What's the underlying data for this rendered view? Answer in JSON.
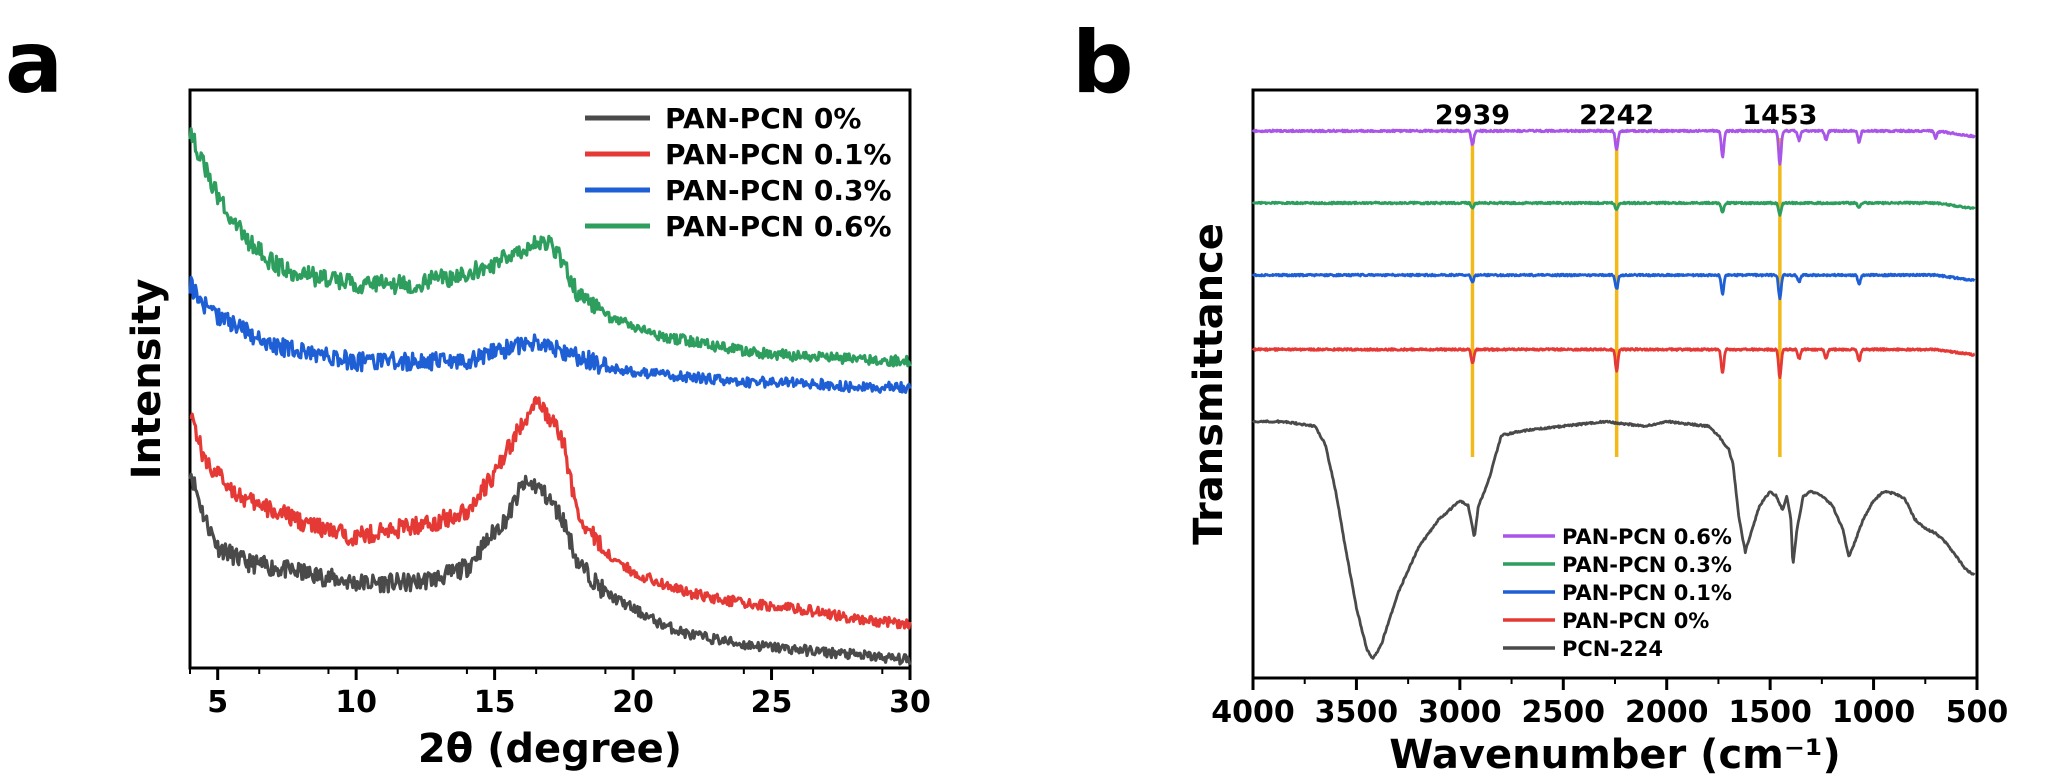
{
  "chart_data": [
    {
      "panel": "a",
      "type": "line",
      "xlabel": "2θ (degree)",
      "ylabel": "Intensity",
      "xlim": [
        4,
        30
      ],
      "xticks": [
        5,
        10,
        15,
        20,
        25,
        30
      ],
      "yticks": [],
      "legend_position": "top-right",
      "grid": false,
      "series": [
        {
          "name": "PAN-PCN 0%",
          "color": "#4a4a4a",
          "points": [
            [
              4,
              0.34
            ],
            [
              4.5,
              0.25
            ],
            [
              5,
              0.19
            ],
            [
              6,
              0.16
            ],
            [
              7,
              0.15
            ],
            [
              8,
              0.14
            ],
            [
              9,
              0.13
            ],
            [
              10,
              0.12
            ],
            [
              11,
              0.12
            ],
            [
              12,
              0.12
            ],
            [
              13,
              0.13
            ],
            [
              14,
              0.15
            ],
            [
              15,
              0.22
            ],
            [
              15.5,
              0.25
            ],
            [
              16,
              0.31
            ],
            [
              16.5,
              0.31
            ],
            [
              17,
              0.28
            ],
            [
              17.5,
              0.24
            ],
            [
              18,
              0.16
            ],
            [
              19,
              0.1
            ],
            [
              20,
              0.07
            ],
            [
              21,
              0.04
            ],
            [
              22,
              0.02
            ],
            [
              23,
              0.01
            ],
            [
              24,
              0.0
            ],
            [
              26,
              -0.01
            ],
            [
              28,
              -0.02
            ],
            [
              30,
              -0.03
            ]
          ]
        },
        {
          "name": "PAN-PCN 0.1%",
          "color": "#e53935",
          "points": [
            [
              4,
              0.46
            ],
            [
              4.5,
              0.36
            ],
            [
              5,
              0.33
            ],
            [
              6,
              0.28
            ],
            [
              7,
              0.26
            ],
            [
              8,
              0.24
            ],
            [
              9,
              0.22
            ],
            [
              10,
              0.21
            ],
            [
              11,
              0.22
            ],
            [
              12,
              0.23
            ],
            [
              13,
              0.24
            ],
            [
              14,
              0.26
            ],
            [
              15,
              0.33
            ],
            [
              16,
              0.43
            ],
            [
              16.5,
              0.47
            ],
            [
              17,
              0.44
            ],
            [
              17.5,
              0.39
            ],
            [
              18,
              0.25
            ],
            [
              19,
              0.18
            ],
            [
              20,
              0.14
            ],
            [
              21,
              0.12
            ],
            [
              22,
              0.1
            ],
            [
              23,
              0.09
            ],
            [
              24,
              0.08
            ],
            [
              26,
              0.07
            ],
            [
              28,
              0.05
            ],
            [
              30,
              0.04
            ]
          ]
        },
        {
          "name": "PAN-PCN 0.3%",
          "color": "#1e5fd6",
          "points": [
            [
              4,
              0.7
            ],
            [
              4.5,
              0.66
            ],
            [
              5,
              0.64
            ],
            [
              6,
              0.61
            ],
            [
              7,
              0.58
            ],
            [
              8,
              0.57
            ],
            [
              9,
              0.56
            ],
            [
              10,
              0.55
            ],
            [
              11,
              0.55
            ],
            [
              12,
              0.55
            ],
            [
              13,
              0.55
            ],
            [
              14,
              0.55
            ],
            [
              15,
              0.57
            ],
            [
              16,
              0.58
            ],
            [
              16.5,
              0.59
            ],
            [
              17,
              0.58
            ],
            [
              18,
              0.56
            ],
            [
              19,
              0.54
            ],
            [
              20,
              0.53
            ],
            [
              22,
              0.52
            ],
            [
              24,
              0.51
            ],
            [
              26,
              0.51
            ],
            [
              28,
              0.5
            ],
            [
              30,
              0.5
            ]
          ]
        },
        {
          "name": "PAN-PCN 0.6%",
          "color": "#2e9e5e",
          "points": [
            [
              4,
              1.0
            ],
            [
              4.5,
              0.93
            ],
            [
              5,
              0.87
            ],
            [
              6,
              0.79
            ],
            [
              7,
              0.74
            ],
            [
              8,
              0.72
            ],
            [
              9,
              0.71
            ],
            [
              10,
              0.7
            ],
            [
              11,
              0.7
            ],
            [
              12,
              0.7
            ],
            [
              13,
              0.71
            ],
            [
              14,
              0.72
            ],
            [
              15,
              0.74
            ],
            [
              16,
              0.77
            ],
            [
              16.5,
              0.78
            ],
            [
              17,
              0.78
            ],
            [
              17.5,
              0.74
            ],
            [
              18,
              0.68
            ],
            [
              19,
              0.64
            ],
            [
              20,
              0.62
            ],
            [
              21,
              0.6
            ],
            [
              22,
              0.59
            ],
            [
              23,
              0.58
            ],
            [
              24,
              0.57
            ],
            [
              26,
              0.56
            ],
            [
              28,
              0.555
            ],
            [
              30,
              0.55
            ]
          ]
        }
      ]
    },
    {
      "panel": "b",
      "type": "line",
      "xlabel": "Wavenumber (cm⁻¹)",
      "ylabel": "Transmittance",
      "xlim": [
        4000,
        500
      ],
      "xticks": [
        4000,
        3500,
        3000,
        2500,
        2000,
        1500,
        1000,
        500
      ],
      "yticks": [],
      "legend_position": "bottom-center",
      "grid": false,
      "annotations": [
        {
          "label": "2939",
          "x": 2939
        },
        {
          "label": "2242",
          "x": 2242
        },
        {
          "label": "1453",
          "x": 1453
        }
      ],
      "series": [
        {
          "name": "PAN-PCN 0.6%",
          "color": "#a855e8",
          "baseline": 0.955,
          "features": [
            [
              2939,
              0.03
            ],
            [
              2242,
              0.04
            ],
            [
              1730,
              0.055
            ],
            [
              1453,
              0.07
            ],
            [
              1360,
              0.02
            ],
            [
              1230,
              0.02
            ],
            [
              1070,
              0.025
            ],
            [
              700,
              0.015
            ]
          ]
        },
        {
          "name": "PAN-PCN 0.3%",
          "color": "#2e9e5e",
          "baseline": 0.8,
          "features": [
            [
              2939,
              0.01
            ],
            [
              2242,
              0.015
            ],
            [
              1730,
              0.02
            ],
            [
              1453,
              0.025
            ],
            [
              1070,
              0.01
            ]
          ]
        },
        {
          "name": "PAN-PCN 0.1%",
          "color": "#1e5fd6",
          "baseline": 0.645,
          "features": [
            [
              2939,
              0.015
            ],
            [
              2242,
              0.03
            ],
            [
              1730,
              0.04
            ],
            [
              1453,
              0.05
            ],
            [
              1360,
              0.015
            ],
            [
              1070,
              0.02
            ]
          ]
        },
        {
          "name": "PAN-PCN 0%",
          "color": "#e53935",
          "baseline": 0.485,
          "features": [
            [
              2939,
              0.03
            ],
            [
              2242,
              0.045
            ],
            [
              1730,
              0.05
            ],
            [
              1453,
              0.06
            ],
            [
              1360,
              0.02
            ],
            [
              1230,
              0.02
            ],
            [
              1070,
              0.025
            ]
          ]
        },
        {
          "name": "PCN-224",
          "color": "#4a4a4a",
          "points": [
            [
              4000,
              0.33
            ],
            [
              3850,
              0.33
            ],
            [
              3700,
              0.32
            ],
            [
              3650,
              0.28
            ],
            [
              3600,
              0.18
            ],
            [
              3550,
              0.05
            ],
            [
              3500,
              -0.07
            ],
            [
              3450,
              -0.16
            ],
            [
              3420,
              -0.18
            ],
            [
              3380,
              -0.15
            ],
            [
              3300,
              -0.04
            ],
            [
              3200,
              0.06
            ],
            [
              3100,
              0.12
            ],
            [
              3000,
              0.16
            ],
            [
              2960,
              0.15
            ],
            [
              2930,
              0.08
            ],
            [
              2910,
              0.15
            ],
            [
              2880,
              0.18
            ],
            [
              2850,
              0.22
            ],
            [
              2800,
              0.3
            ],
            [
              2700,
              0.31
            ],
            [
              2500,
              0.32
            ],
            [
              2300,
              0.33
            ],
            [
              2100,
              0.32
            ],
            [
              2000,
              0.33
            ],
            [
              1800,
              0.32
            ],
            [
              1750,
              0.3
            ],
            [
              1700,
              0.27
            ],
            [
              1680,
              0.24
            ],
            [
              1650,
              0.12
            ],
            [
              1620,
              0.05
            ],
            [
              1600,
              0.08
            ],
            [
              1550,
              0.15
            ],
            [
              1500,
              0.18
            ],
            [
              1470,
              0.17
            ],
            [
              1440,
              0.14
            ],
            [
              1420,
              0.17
            ],
            [
              1400,
              0.12
            ],
            [
              1390,
              0.02
            ],
            [
              1370,
              0.1
            ],
            [
              1340,
              0.17
            ],
            [
              1300,
              0.18
            ],
            [
              1250,
              0.17
            ],
            [
              1200,
              0.15
            ],
            [
              1150,
              0.1
            ],
            [
              1120,
              0.04
            ],
            [
              1100,
              0.06
            ],
            [
              1050,
              0.12
            ],
            [
              1000,
              0.16
            ],
            [
              950,
              0.18
            ],
            [
              900,
              0.175
            ],
            [
              850,
              0.165
            ],
            [
              800,
              0.12
            ],
            [
              750,
              0.1
            ],
            [
              700,
              0.09
            ],
            [
              650,
              0.07
            ],
            [
              600,
              0.04
            ],
            [
              550,
              0.01
            ],
            [
              510,
              0.0
            ]
          ]
        }
      ]
    }
  ],
  "panels": {
    "a": {
      "letter": "a"
    },
    "b": {
      "letter": "b"
    }
  }
}
